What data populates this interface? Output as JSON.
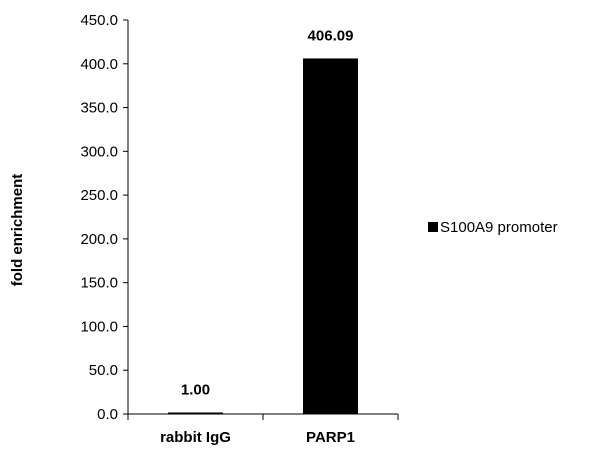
{
  "chart_data": {
    "type": "bar",
    "categories": [
      "rabbit IgG",
      "PARP1"
    ],
    "series": [
      {
        "name": "S100A9 promoter",
        "values": [
          1.0,
          406.09
        ]
      }
    ],
    "data_labels": [
      "1.00",
      "406.09"
    ],
    "ylabel": "fold enrichment",
    "xlabel": "",
    "ylim": [
      0,
      450
    ],
    "yticks": [
      "0.0",
      "50.0",
      "100.0",
      "150.0",
      "200.0",
      "250.0",
      "300.0",
      "350.0",
      "400.0",
      "450.0"
    ],
    "ytick_values": [
      0,
      50,
      100,
      150,
      200,
      250,
      300,
      350,
      400,
      450
    ],
    "grid": false,
    "legend_position": "right",
    "bar_color": "#000000"
  }
}
